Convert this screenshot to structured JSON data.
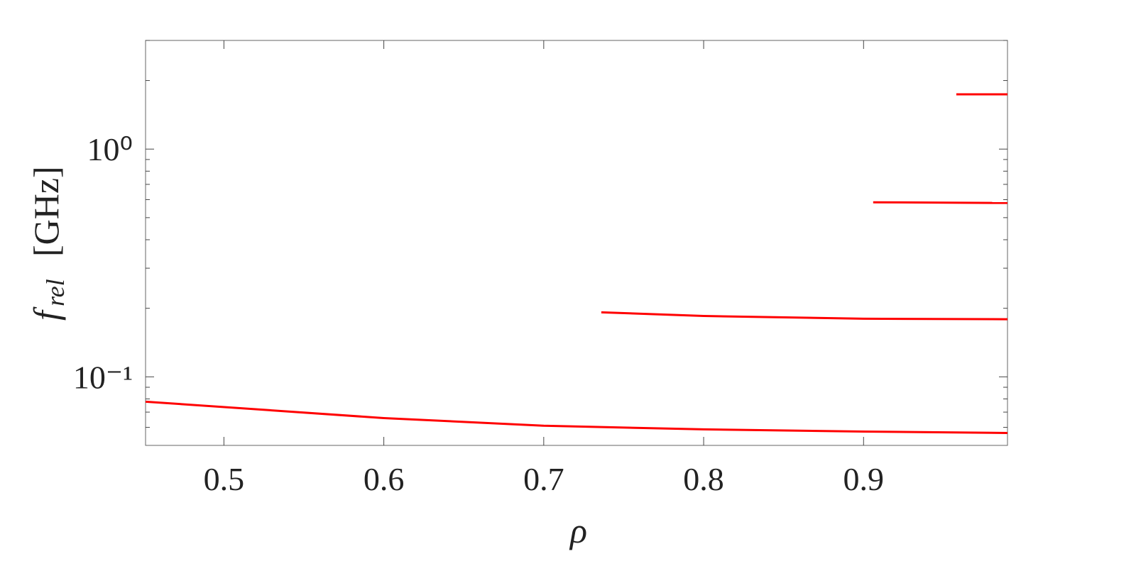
{
  "chart_data": {
    "type": "line",
    "xlabel": "ρ",
    "ylabel": "f",
    "ylabel_sub": "rel",
    "ylabel_unit": "[GHz]",
    "xlim": [
      0.451,
      0.99
    ],
    "xticks": [
      0.5,
      0.6,
      0.7,
      0.8,
      0.9
    ],
    "ylim": [
      0.05,
      3
    ],
    "ylog": true,
    "yticks": [
      {
        "value": 0.1,
        "label": "10⁻¹"
      },
      {
        "value": 1,
        "label": "10⁰"
      }
    ],
    "yminorticks": [
      0.06,
      0.07,
      0.08,
      0.09,
      0.2,
      0.3,
      0.4,
      0.5,
      0.6,
      0.7,
      0.8,
      0.9,
      2,
      3
    ],
    "grid": false,
    "series": [
      {
        "color": "#ff0000",
        "x": [
          0.451,
          0.6,
          0.7,
          0.8,
          0.9,
          0.99
        ],
        "values": [
          0.0778,
          0.0659,
          0.061,
          0.0588,
          0.0575,
          0.0567
        ]
      },
      {
        "color": "#ff0000",
        "x": [
          0.736,
          0.8,
          0.9,
          0.99
        ],
        "values": [
          0.192,
          0.185,
          0.18,
          0.179
        ]
      },
      {
        "color": "#ff0000",
        "x": [
          0.906,
          0.99
        ],
        "values": [
          0.584,
          0.58
        ]
      },
      {
        "color": "#ff0000",
        "x": [
          0.958,
          0.99
        ],
        "values": [
          1.74,
          1.74
        ]
      }
    ]
  }
}
